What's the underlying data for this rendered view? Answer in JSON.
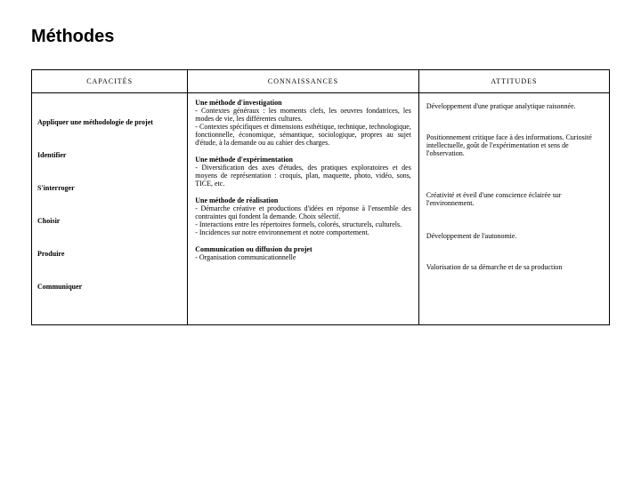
{
  "title": "Méthodes",
  "headers": {
    "capacities": "CAPACITÉS",
    "knowledge": "CONNAISSANCES",
    "attitudes": "ATTITUDES"
  },
  "capacities": [
    "Appliquer une méthodologie de projet",
    "Identifier",
    "S'interroger",
    "Choisir",
    "Produire",
    "Communiquer"
  ],
  "knowledge": [
    {
      "title": "Une méthode d'investigation",
      "body": "- Contextes généraux : les moments clefs, les oeuvres fondatrices, les modes de vie, les différentes cultures.\n- Contextes spécifiques et dimensions esthétique, technique, technologique, fonctionnelle, économique, sémantique, sociologique, propres au sujet d'étude, à la demande ou au cahier des charges."
    },
    {
      "title": "Une méthode d'expérimentation",
      "body": "- Diversification des axes d'études, des pratiques exploratoires et des moyens de représentation : croquis, plan, maquette, photo, vidéo, sons, TICE, etc."
    },
    {
      "title": "Une méthode de réalisation",
      "body": "- Démarche créative et productions d'idées en réponse à l'ensemble des contraintes qui fondent la demande. Choix sélectif.\n- Interactions entre les répertoires formels, colorés, structurels, culturels.\n- Incidences sur notre environnement et notre comportement."
    },
    {
      "title": "Communication ou diffusion du projet",
      "body": "- Organisation communicationnelle"
    }
  ],
  "attitudes": [
    "Développement d'une pratique analytique raisonnée.",
    "Positionnement critique face à des informations. Curiosité intellectuelle, goût de l'expérimentation et sens de l'observation.",
    "Créativité et éveil d'une conscience éclairée sur l'environnement.",
    "Développement de l'autonomie.",
    "Valorisation de sa démarche et de sa production"
  ]
}
